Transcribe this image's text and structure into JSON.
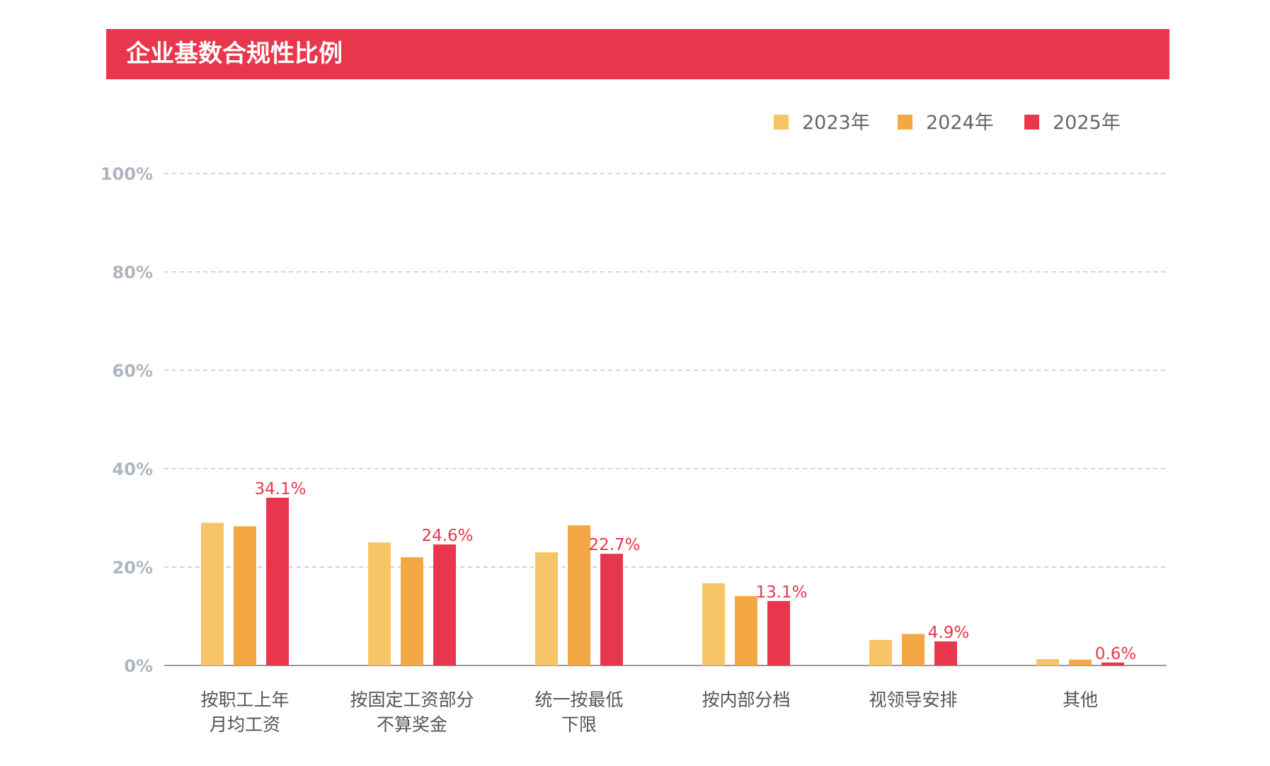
{
  "title": "企业基数合规性比例",
  "colors": {
    "header_bg": "#e8374c",
    "series": [
      "#f6c567",
      "#f4a843",
      "#e8374c"
    ],
    "grid": "#c8c8c8",
    "axis": "#9a9a9a",
    "tick_text": "#aeb6bf",
    "label_text": "#e8374c"
  },
  "chart_data": {
    "type": "bar",
    "categories": [
      [
        "按职工上年",
        "月均工资"
      ],
      [
        "按固定工资部分",
        "不算奖金"
      ],
      [
        "统一按最低",
        "下限"
      ],
      [
        "按内部分档"
      ],
      [
        "视领导安排"
      ],
      [
        "其他"
      ]
    ],
    "series": [
      {
        "name": "2023年",
        "values": [
          29.0,
          25.0,
          23.0,
          16.7,
          5.2,
          1.3
        ]
      },
      {
        "name": "2024年",
        "values": [
          28.3,
          22.0,
          28.5,
          14.1,
          6.4,
          1.2
        ]
      },
      {
        "name": "2025年",
        "values": [
          34.1,
          24.6,
          22.7,
          13.1,
          4.9,
          0.6
        ]
      }
    ],
    "data_labels": [
      "34.1%",
      "24.6%",
      "22.7%",
      "13.1%",
      "4.9%",
      "0.6%"
    ],
    "yticks": [
      "0%",
      "20%",
      "40%",
      "60%",
      "80%",
      "100%"
    ],
    "ylim": [
      0,
      100
    ],
    "grid": true,
    "legend": "top-right"
  }
}
